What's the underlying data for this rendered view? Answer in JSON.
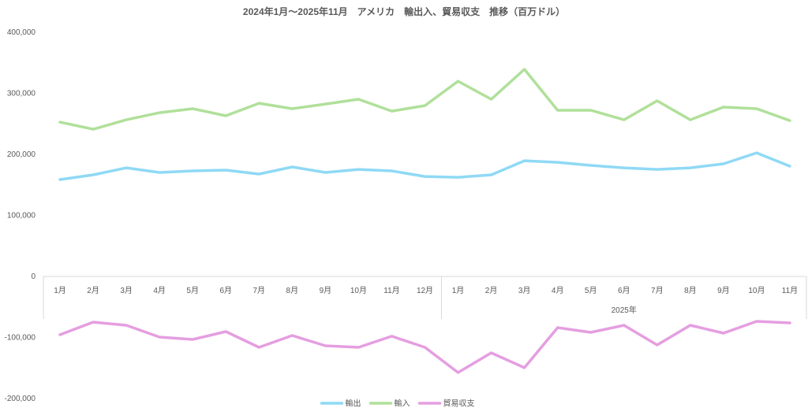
{
  "chart_data": {
    "type": "line",
    "title": "2024年1月～2025年11月　アメリカ　輸出入、貿易収支　推移（百万ドル）",
    "xlabel": "",
    "ylabel": "",
    "ylim": [
      -200000,
      400000
    ],
    "yticks": [
      {
        "value": 400000,
        "label": "400,000",
        "color": "#595959"
      },
      {
        "value": 300000,
        "label": "300,000",
        "color": "#595959"
      },
      {
        "value": 200000,
        "label": "200,000",
        "color": "#595959"
      },
      {
        "value": 100000,
        "label": "100,000",
        "color": "#595959"
      },
      {
        "value": 0,
        "label": "0",
        "color": "#595959"
      },
      {
        "value": -100000,
        "label": "-100,000",
        "color": "#ff0000"
      },
      {
        "value": -200000,
        "label": "-200,000",
        "color": "#ff0000"
      }
    ],
    "grid": false,
    "categories": [
      "1月",
      "2月",
      "3月",
      "4月",
      "5月",
      "6月",
      "7月",
      "8月",
      "9月",
      "10月",
      "11月",
      "12月",
      "1月",
      "2月",
      "3月",
      "4月",
      "5月",
      "6月",
      "7月",
      "8月",
      "9月",
      "10月",
      "11月"
    ],
    "groups": [
      {
        "label": "",
        "count": 12
      },
      {
        "label": "2025年",
        "count": 11
      }
    ],
    "legend_position": "bottom",
    "series": [
      {
        "name": "輸出",
        "color": "#8fd9f5",
        "values": [
          158700,
          166400,
          178000,
          170300,
          172900,
          174200,
          167700,
          179300,
          170300,
          175400,
          172900,
          163800,
          162500,
          166400,
          189600,
          187000,
          181900,
          178000,
          175400,
          178000,
          184500,
          202500,
          180600
        ]
      },
      {
        "name": "輸入",
        "color": "#b0e09a",
        "values": [
          252800,
          241200,
          256700,
          268300,
          274800,
          263200,
          283800,
          274800,
          282500,
          290300,
          270900,
          279900,
          319900,
          290300,
          339300,
          272200,
          272200,
          256700,
          287700,
          256700,
          277400,
          274800,
          255400
        ]
      },
      {
        "name": "貿易収支",
        "color": "#e59ee0",
        "values": [
          -95500,
          -74800,
          -80000,
          -99300,
          -103200,
          -90300,
          -116100,
          -96800,
          -113500,
          -116100,
          -98000,
          -116100,
          -157400,
          -125100,
          -149600,
          -83900,
          -91600,
          -80000,
          -112200,
          -80000,
          -92900,
          -73500,
          -76100
        ]
      }
    ]
  }
}
